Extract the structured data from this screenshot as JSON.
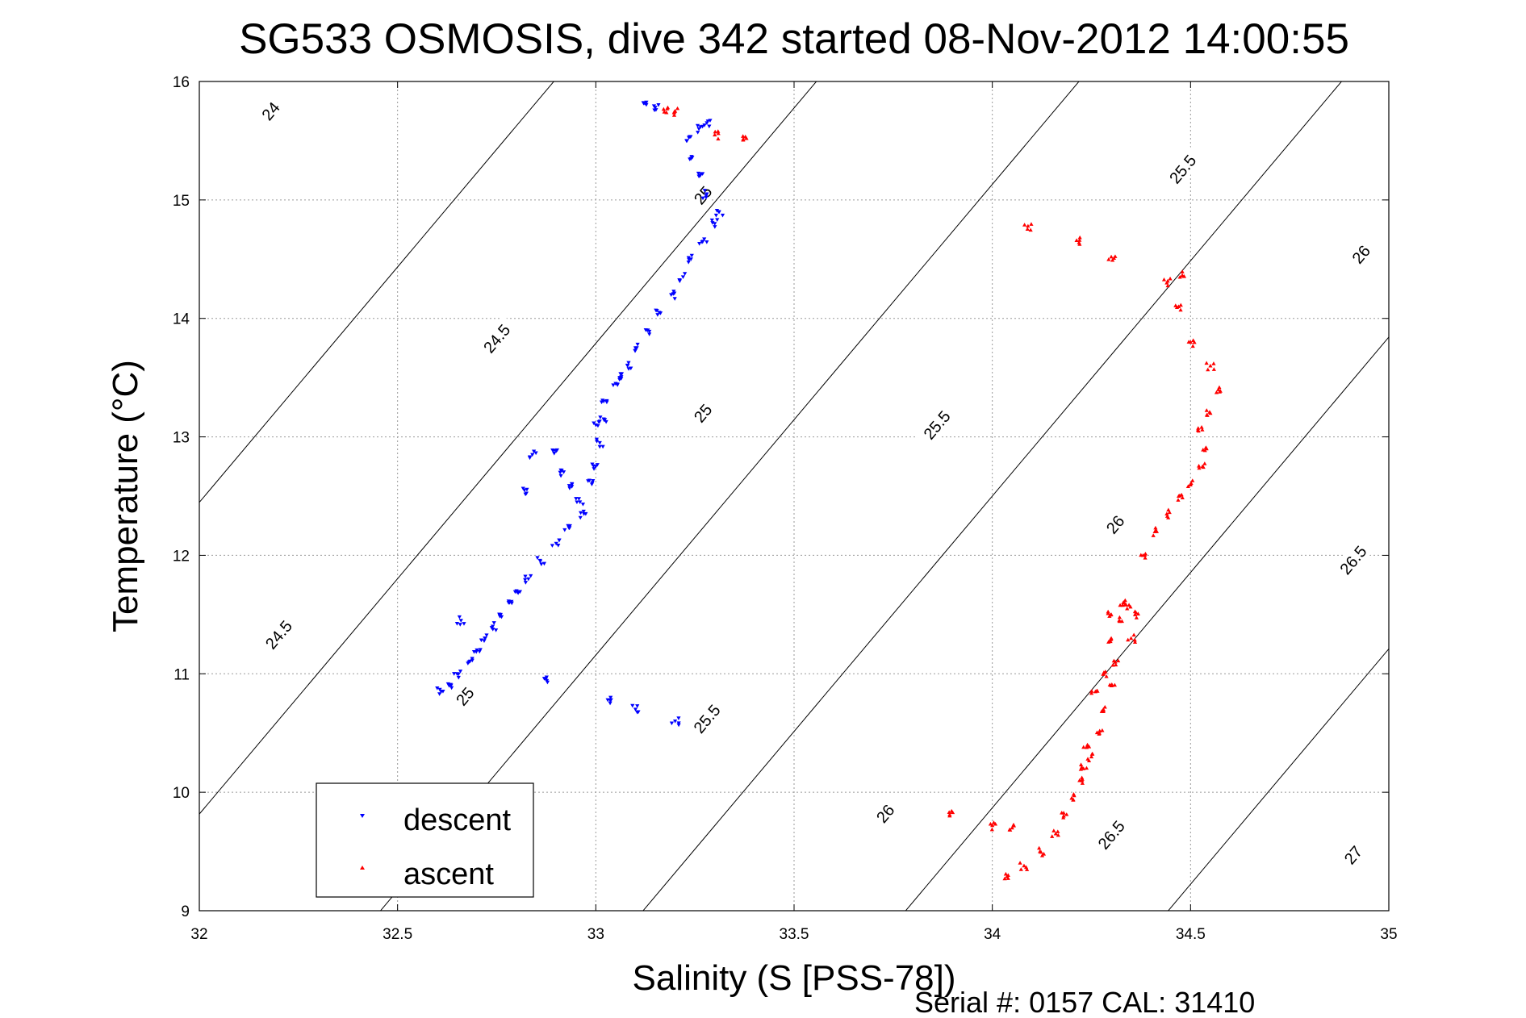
{
  "chart_data": {
    "type": "scatter",
    "title": "SG533 OSMOSIS, dive 342 started 08-Nov-2012 14:00:55",
    "xlabel": "Salinity (S [PSS-78])",
    "ylabel": "Temperature (°C)",
    "xlim": [
      32,
      35
    ],
    "ylim": [
      9,
      16
    ],
    "xticks": [
      32,
      32.5,
      33,
      33.5,
      34,
      34.5,
      35
    ],
    "yticks": [
      9,
      10,
      11,
      12,
      13,
      14,
      15,
      16
    ],
    "grid": true,
    "legend_position": "bottom-left",
    "footer": "Serial #: 0157  CAL: 31410",
    "contours": {
      "type": "sigma-theta isopycnals",
      "levels": [
        24,
        24.5,
        25,
        25.5,
        26,
        26.5,
        27
      ],
      "labels": [
        {
          "text": "24",
          "s": 32.18,
          "t": 15.75
        },
        {
          "text": "24.5",
          "s": 32.75,
          "t": 13.83
        },
        {
          "text": "24.5",
          "s": 32.2,
          "t": 11.33
        },
        {
          "text": "25",
          "s": 33.27,
          "t": 15.04
        },
        {
          "text": "25",
          "s": 33.27,
          "t": 13.2
        },
        {
          "text": "25",
          "s": 32.67,
          "t": 10.81
        },
        {
          "text": "25.5",
          "s": 34.48,
          "t": 15.26
        },
        {
          "text": "25.5",
          "s": 33.86,
          "t": 13.1
        },
        {
          "text": "25.5",
          "s": 33.28,
          "t": 10.62
        },
        {
          "text": "26",
          "s": 34.93,
          "t": 14.54
        },
        {
          "text": "26",
          "s": 34.31,
          "t": 12.26
        },
        {
          "text": "26",
          "s": 33.73,
          "t": 9.82
        },
        {
          "text": "26.5",
          "s": 34.91,
          "t": 11.96
        },
        {
          "text": "26.5",
          "s": 34.3,
          "t": 9.64
        },
        {
          "text": "27",
          "s": 34.91,
          "t": 9.47
        }
      ]
    },
    "series": [
      {
        "name": "descent",
        "color": "#0000ff",
        "marker": "triangle-down",
        "points": [
          [
            32.61,
            10.85
          ],
          [
            32.63,
            10.9
          ],
          [
            32.65,
            11.0
          ],
          [
            32.68,
            11.1
          ],
          [
            32.7,
            11.2
          ],
          [
            32.72,
            11.3
          ],
          [
            32.74,
            11.4
          ],
          [
            32.76,
            11.5
          ],
          [
            32.78,
            11.6
          ],
          [
            32.8,
            11.7
          ],
          [
            32.83,
            11.8
          ],
          [
            32.86,
            11.95
          ],
          [
            32.9,
            12.1
          ],
          [
            32.93,
            12.25
          ],
          [
            32.96,
            12.45
          ],
          [
            32.99,
            12.6
          ],
          [
            33.0,
            12.75
          ],
          [
            33.01,
            12.95
          ],
          [
            33.0,
            13.1
          ],
          [
            33.02,
            13.3
          ],
          [
            33.05,
            13.45
          ],
          [
            33.08,
            13.6
          ],
          [
            33.1,
            13.75
          ],
          [
            33.13,
            13.9
          ],
          [
            33.16,
            14.05
          ],
          [
            33.19,
            14.2
          ],
          [
            33.22,
            14.35
          ],
          [
            33.24,
            14.5
          ],
          [
            33.27,
            14.65
          ],
          [
            33.3,
            14.8
          ],
          [
            33.31,
            14.9
          ],
          [
            33.28,
            15.05
          ],
          [
            33.26,
            15.2
          ],
          [
            33.24,
            15.35
          ],
          [
            33.23,
            15.5
          ],
          [
            33.26,
            15.6
          ],
          [
            33.28,
            15.65
          ],
          [
            33.12,
            15.82
          ],
          [
            33.15,
            15.78
          ],
          [
            32.66,
            11.45
          ],
          [
            32.84,
            12.85
          ],
          [
            32.82,
            12.55
          ],
          [
            32.91,
            12.7
          ],
          [
            32.9,
            12.88
          ],
          [
            32.87,
            10.96
          ],
          [
            33.03,
            10.78
          ],
          [
            33.1,
            10.7
          ],
          [
            33.2,
            10.6
          ],
          [
            32.94,
            12.6
          ],
          [
            32.97,
            12.35
          ],
          [
            33.06,
            13.5
          ],
          [
            33.02,
            13.15
          ]
        ]
      },
      {
        "name": "ascent",
        "color": "#ff0000",
        "marker": "triangle-up",
        "points": [
          [
            34.04,
            9.3
          ],
          [
            34.08,
            9.38
          ],
          [
            34.12,
            9.5
          ],
          [
            34.16,
            9.65
          ],
          [
            34.18,
            9.8
          ],
          [
            34.2,
            9.95
          ],
          [
            34.22,
            10.1
          ],
          [
            34.25,
            10.3
          ],
          [
            34.27,
            10.5
          ],
          [
            34.28,
            10.7
          ],
          [
            34.3,
            10.9
          ],
          [
            34.31,
            11.1
          ],
          [
            34.3,
            11.3
          ],
          [
            34.3,
            11.5
          ],
          [
            34.33,
            11.6
          ],
          [
            34.36,
            11.5
          ],
          [
            34.35,
            11.3
          ],
          [
            34.38,
            12.0
          ],
          [
            34.41,
            12.2
          ],
          [
            34.44,
            12.35
          ],
          [
            34.47,
            12.5
          ],
          [
            34.5,
            12.6
          ],
          [
            34.53,
            12.75
          ],
          [
            34.54,
            12.9
          ],
          [
            34.52,
            13.05
          ],
          [
            34.55,
            13.2
          ],
          [
            34.57,
            13.4
          ],
          [
            34.55,
            13.6
          ],
          [
            34.5,
            13.8
          ],
          [
            34.47,
            14.1
          ],
          [
            34.44,
            14.3
          ],
          [
            34.48,
            14.36
          ],
          [
            34.3,
            14.52
          ],
          [
            34.22,
            14.66
          ],
          [
            34.09,
            14.78
          ],
          [
            34.0,
            9.72
          ],
          [
            33.9,
            9.83
          ],
          [
            34.05,
            9.7
          ],
          [
            34.32,
            11.45
          ],
          [
            34.34,
            11.55
          ],
          [
            34.28,
            11.0
          ],
          [
            34.26,
            10.85
          ],
          [
            33.3,
            15.55
          ],
          [
            33.38,
            15.52
          ],
          [
            33.2,
            15.75
          ],
          [
            33.18,
            15.77
          ],
          [
            34.23,
            10.2
          ],
          [
            34.24,
            10.4
          ]
        ]
      }
    ]
  }
}
